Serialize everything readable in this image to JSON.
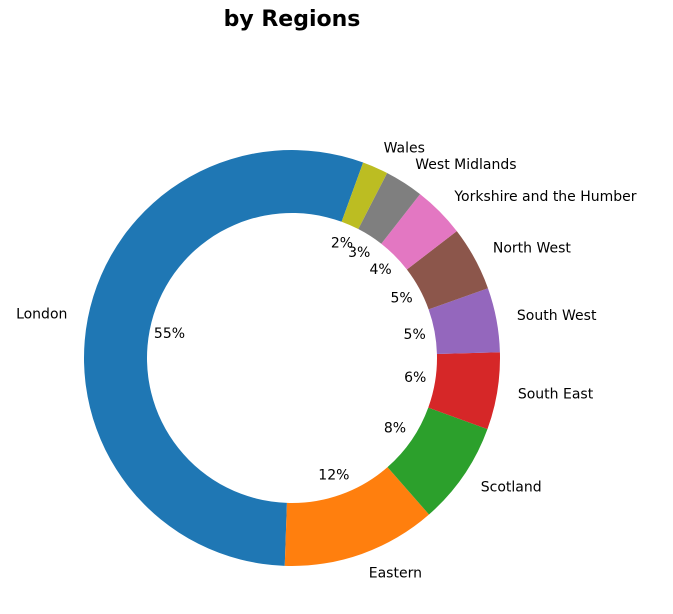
{
  "chart_data": {
    "type": "donut",
    "title": "by Regions",
    "categories": [
      "London",
      "Eastern",
      "Scotland",
      "South East",
      "South West",
      "North West",
      "Yorkshire and the Humber",
      "West Midlands",
      "Wales"
    ],
    "values": [
      55,
      12,
      8,
      6,
      5,
      5,
      4,
      3,
      2
    ],
    "value_labels": [
      "55%",
      "12%",
      "8%",
      "6%",
      "5%",
      "5%",
      "4%",
      "3%",
      "2%"
    ],
    "colors": [
      "#1f77b4",
      "#ff7f0e",
      "#2ca02c",
      "#d62728",
      "#9467bd",
      "#8c564b",
      "#e377c2",
      "#7f7f7f",
      "#bcbd22"
    ]
  }
}
